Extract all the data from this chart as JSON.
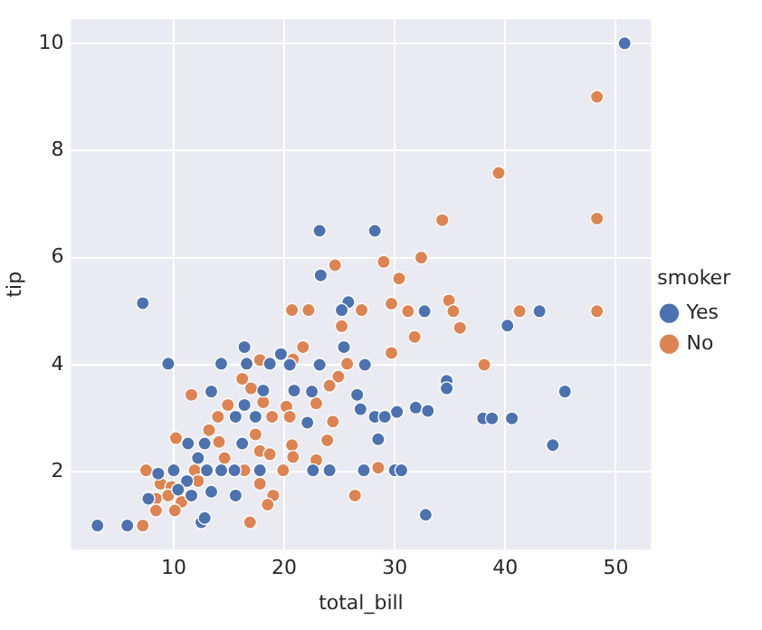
{
  "chart_data": {
    "type": "scatter",
    "xlabel": "total_bill",
    "ylabel": "tip",
    "legend_title": "smoker",
    "legend": "right",
    "grid": true,
    "marker": "circle",
    "xlim": [
      0.7,
      53.2
    ],
    "ylim": [
      0.55,
      10.45
    ],
    "xticks": [
      10,
      20,
      30,
      40,
      50
    ],
    "yticks": [
      2,
      4,
      6,
      8,
      10
    ],
    "series": [
      {
        "name": "Yes",
        "color": "#4c72b0",
        "x": [
          7.2,
          23.3,
          25.8,
          25.2,
          25.4,
          16.4,
          19.7,
          9.5,
          14.3,
          16.6,
          18.7,
          20.5,
          23.2,
          27.3,
          13.4,
          18.1,
          20.9,
          22.5,
          26.6,
          16.4,
          15.6,
          17.4,
          22.1,
          26.9,
          28.2,
          29.1,
          30.3,
          11.3,
          12.8,
          16.2,
          12.2,
          28.5,
          8.6,
          10,
          13,
          14.3,
          15.5,
          17.8,
          22.6,
          24.1,
          27.2,
          30,
          30.6,
          11.2,
          7.7,
          10.4,
          11.6,
          13.4,
          15.6,
          3.1,
          5.8,
          12.5,
          12.8,
          23.2,
          28.2,
          32.7,
          40.2,
          43.1,
          34.7,
          34.7,
          45.4,
          30.2,
          31.9,
          33,
          38,
          38.8,
          40.6,
          44.3,
          32.8,
          50.8
        ],
        "values": [
          5.15,
          5.67,
          5.17,
          5.02,
          4.33,
          4.33,
          4.2,
          4.02,
          4.02,
          4.02,
          4.02,
          4,
          4,
          4,
          3.5,
          3.52,
          3.52,
          3.5,
          3.44,
          3.25,
          3.03,
          3.03,
          2.92,
          3.17,
          3.03,
          3.03,
          3.14,
          2.53,
          2.53,
          2.53,
          2.26,
          2.61,
          1.97,
          2.03,
          2.03,
          2.03,
          2.03,
          2.03,
          2.03,
          2.03,
          2.03,
          2.03,
          2.03,
          1.83,
          1.5,
          1.67,
          1.56,
          1.63,
          1.56,
          1,
          1,
          1.06,
          1.14,
          6.5,
          6.5,
          5,
          4.73,
          5,
          3.7,
          3.56,
          3.5,
          3.12,
          3.2,
          3.14,
          3,
          3,
          3,
          2.5,
          1.2,
          10
        ]
      },
      {
        "name": "No",
        "color": "#dd8452",
        "x": [
          24.6,
          29,
          30.4,
          20.7,
          22.2,
          27,
          29.7,
          25.2,
          31.8,
          29.7,
          21.7,
          25.7,
          17.8,
          20.8,
          24.9,
          16.2,
          11.6,
          14.9,
          14,
          17,
          18.1,
          18.9,
          20.2,
          20.5,
          22.9,
          24.1,
          24.4,
          13.2,
          10.2,
          14.1,
          17.4,
          17.8,
          18.7,
          20.7,
          20.8,
          23.9,
          22.9,
          14.6,
          7.5,
          11.9,
          16.4,
          19.9,
          28.5,
          8.8,
          9.8,
          12.2,
          17.8,
          8.4,
          10.7,
          9.5,
          19,
          8.4,
          10.1,
          26.4,
          18.5,
          7.2,
          16.9,
          32.4,
          31.2,
          34.9,
          35.3,
          35.9,
          41.3,
          48.3,
          38.1,
          48.3,
          39.4,
          34.3,
          48.3
        ],
        "values": [
          5.86,
          5.92,
          5.61,
          5.02,
          5.02,
          5.02,
          5.14,
          4.72,
          4.52,
          4.22,
          4.33,
          4.02,
          4.09,
          4.1,
          3.78,
          3.74,
          3.44,
          3.25,
          3.03,
          3.56,
          3.3,
          3.03,
          3.22,
          3.03,
          3.28,
          3.61,
          2.94,
          2.78,
          2.63,
          2.56,
          2.7,
          2.39,
          2.33,
          2.5,
          2.28,
          2.59,
          2.22,
          2.26,
          2.03,
          2.03,
          2.03,
          2.03,
          2.08,
          1.78,
          1.72,
          1.83,
          1.78,
          1.5,
          1.44,
          1.56,
          1.56,
          1.28,
          1.28,
          1.56,
          1.39,
          1,
          1.06,
          6,
          5,
          5.2,
          5,
          4.69,
          5,
          5,
          4,
          9,
          7.58,
          6.7,
          6.73
        ]
      }
    ]
  }
}
